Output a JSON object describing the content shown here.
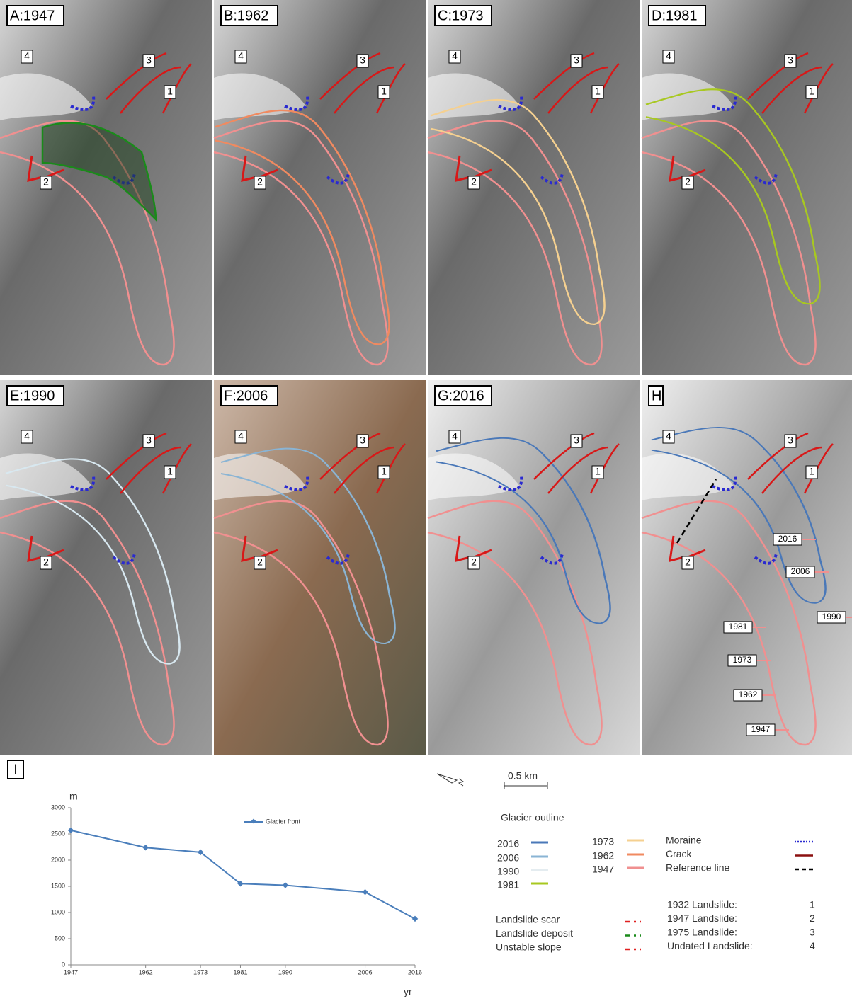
{
  "panels": [
    {
      "label": "A:1947",
      "markers": [
        "4",
        "3",
        "1",
        "2"
      ]
    },
    {
      "label": "B:1962",
      "markers": [
        "4",
        "3",
        "1",
        "2"
      ]
    },
    {
      "label": "C:1973",
      "markers": [
        "4",
        "3",
        "1",
        "2"
      ]
    },
    {
      "label": "D:1981",
      "markers": [
        "4",
        "3",
        "1",
        "2"
      ]
    },
    {
      "label": "E:1990",
      "markers": [
        "4",
        "3",
        "1",
        "2"
      ]
    },
    {
      "label": "F:2006",
      "markers": [
        "4",
        "3",
        "1",
        "2"
      ]
    },
    {
      "label": "G:2016",
      "markers": [
        "4",
        "3",
        "1",
        "2"
      ]
    },
    {
      "label": "H",
      "markers": [
        "4",
        "3",
        "1",
        "2"
      ],
      "year_tags": [
        "2016",
        "2006",
        "1990",
        "1981",
        "1973",
        "1962",
        "1947"
      ]
    }
  ],
  "chart_panel_label": "I",
  "chart_data": {
    "type": "line",
    "x_label": "yr",
    "y_label": "m",
    "x": [
      1947,
      1962,
      1973,
      1981,
      1990,
      2006,
      2016
    ],
    "series": [
      {
        "name": "Glacier front",
        "color": "#4a7ebb",
        "values": [
          2570,
          2240,
          2150,
          1550,
          1520,
          1390,
          880
        ]
      }
    ],
    "xlim": [
      1947,
      2016
    ],
    "xticks": [
      1947,
      1962,
      1973,
      1981,
      1990,
      2006,
      2016
    ],
    "ylim": [
      0,
      3000
    ],
    "yticks": [
      0,
      500,
      1000,
      1500,
      2000,
      2500,
      3000
    ],
    "grid": false
  },
  "legend": {
    "scale_bar": "0.5 km",
    "glacier_outline_title": "Glacier outline",
    "glacier_outlines": [
      {
        "label": "2016",
        "color": "#4a78b8"
      },
      {
        "label": "2006",
        "color": "#8ab4d4"
      },
      {
        "label": "1990",
        "color": "#e4ecf0"
      },
      {
        "label": "1981",
        "color": "#a8c820"
      },
      {
        "label": "1973",
        "color": "#f5d090"
      },
      {
        "label": "1962",
        "color": "#f08a60"
      },
      {
        "label": "1947",
        "color": "#f09090"
      }
    ],
    "symbols": [
      {
        "label": "Moraine",
        "color": "#2a2ad0",
        "dash": "dotted"
      },
      {
        "label": "Crack",
        "color": "#8b1010",
        "dash": "solid"
      },
      {
        "label": "Reference line",
        "color": "#000000",
        "dash": "dashed"
      }
    ],
    "landslides": [
      {
        "label": "1932 Landslide:",
        "id": "1"
      },
      {
        "label": "1947 Landslide:",
        "id": "2"
      },
      {
        "label": "1975 Landslide:",
        "id": "3"
      },
      {
        "label": "Undated Landslide:",
        "id": "4"
      }
    ],
    "landslide_marks": [
      {
        "label": "Landslide scar",
        "color": "#e02020"
      },
      {
        "label": "Landslide deposit",
        "color": "#1a8a1a"
      },
      {
        "label": "Unstable slope",
        "color": "#e02020"
      }
    ]
  }
}
